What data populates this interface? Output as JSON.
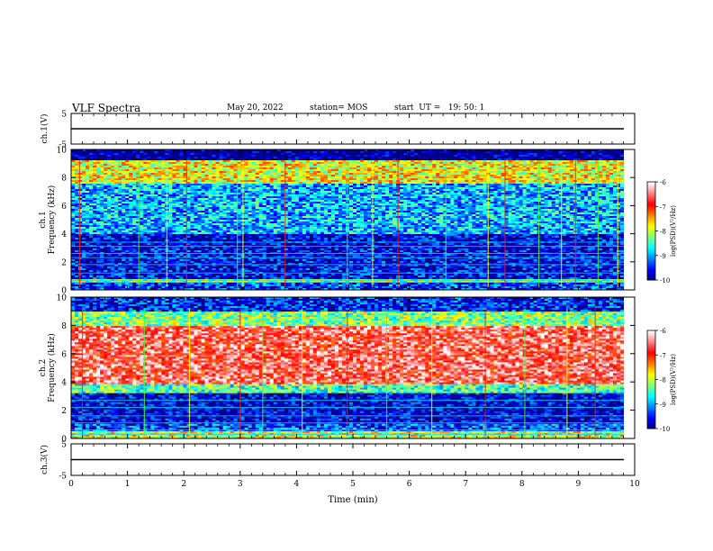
{
  "header": {
    "title": "VLF Spectra",
    "date": "May 20, 2022",
    "station": "station= MOS",
    "start": "start  UT =   19: 50: 1"
  },
  "colors": {
    "spectrum_scale": [
      "#000080",
      "#0000ff",
      "#0080ff",
      "#00ffff",
      "#80ff80",
      "#ffff00",
      "#ff8000",
      "#ff0000",
      "#ff8080",
      "#ffffff"
    ]
  },
  "chart_data": [
    {
      "name": "waveform-ch1",
      "type": "line",
      "ylabel": "ch.1(V)",
      "ylim": [
        -5,
        5
      ],
      "yticks": [
        "5",
        "-5"
      ],
      "xlim": [
        0,
        10
      ],
      "series": [
        {
          "x": [
            0,
            10
          ],
          "y": [
            0,
            0
          ]
        }
      ]
    },
    {
      "name": "spectrogram-ch1",
      "type": "heatmap",
      "ylabel": "ch.1\nFrequency  (kHz)",
      "ylim": [
        0,
        10
      ],
      "yticks": [
        "0",
        "2",
        "4",
        "6",
        "8",
        "10"
      ],
      "xlim": [
        0,
        10
      ],
      "colorbar": {
        "label": "log(PSD)(V²/Hz)",
        "ticks": [
          "-6",
          "-7",
          "-8",
          "-9",
          "-10"
        ],
        "range": [
          -10,
          -6
        ]
      },
      "bands": [
        {
          "f": [
            0,
            0.5
          ],
          "level": -9.4
        },
        {
          "f": [
            0.5,
            0.8
          ],
          "level": -8.2
        },
        {
          "f": [
            0.8,
            3.0
          ],
          "level": -9.6
        },
        {
          "f": [
            3.0,
            4.0
          ],
          "level": -9.7
        },
        {
          "f": [
            4.0,
            7.5
          ],
          "level": -8.9
        },
        {
          "f": [
            7.5,
            9.2
          ],
          "level": -7.8
        },
        {
          "f": [
            9.2,
            10.0
          ],
          "level": -10.0
        }
      ],
      "lines_khz": [
        0.55,
        0.7,
        1.2,
        1.8,
        2.3,
        2.6,
        3.1,
        3.4
      ],
      "spikes_min": [
        0.15,
        1.2,
        1.7,
        2.05,
        2.95,
        3.05,
        3.8,
        4.9,
        5.35,
        5.8,
        6.65,
        7.4,
        7.7,
        8.3,
        8.7,
        8.95,
        9.35,
        9.7
      ]
    },
    {
      "name": "spectrogram-ch2",
      "type": "heatmap",
      "ylabel": "ch.2\nFrequency  (kHz)",
      "ylim": [
        0,
        10
      ],
      "yticks": [
        "0",
        "2",
        "4",
        "6",
        "8",
        "10"
      ],
      "xlim": [
        0,
        10
      ],
      "colorbar": {
        "label": "log(PSD)(V²/Hz)",
        "ticks": [
          "-6",
          "-7",
          "-8",
          "-9",
          "-10"
        ],
        "range": [
          -10,
          -6
        ]
      },
      "bands": [
        {
          "f": [
            0,
            0.5
          ],
          "level": -7.9
        },
        {
          "f": [
            0.5,
            1.0
          ],
          "level": -9.3
        },
        {
          "f": [
            1.0,
            3.2
          ],
          "level": -9.7
        },
        {
          "f": [
            3.2,
            3.8
          ],
          "level": -8.4
        },
        {
          "f": [
            3.8,
            8.0
          ],
          "level": -6.6
        },
        {
          "f": [
            8.0,
            9.0
          ],
          "level": -8.2
        },
        {
          "f": [
            9.0,
            10.0
          ],
          "level": -9.5
        }
      ],
      "lines_khz": [
        0.3,
        0.6,
        1.1,
        1.6,
        2.2,
        2.7
      ],
      "spikes_min": [
        0.2,
        1.3,
        2.1,
        3.0,
        3.4,
        4.1,
        4.9,
        5.6,
        6.4,
        7.35,
        8.05,
        8.8,
        9.3
      ]
    },
    {
      "name": "waveform-ch3",
      "type": "line",
      "ylabel": "ch.3(V)",
      "ylim": [
        -5,
        5
      ],
      "yticks": [
        "5",
        "-5"
      ],
      "xlim": [
        0,
        10
      ],
      "xlabel": "Time  (min)",
      "xticks": [
        "0",
        "1",
        "2",
        "3",
        "4",
        "5",
        "6",
        "7",
        "8",
        "9",
        "10"
      ],
      "series": [
        {
          "x": [
            0,
            10
          ],
          "y": [
            0,
            0
          ]
        }
      ]
    }
  ]
}
